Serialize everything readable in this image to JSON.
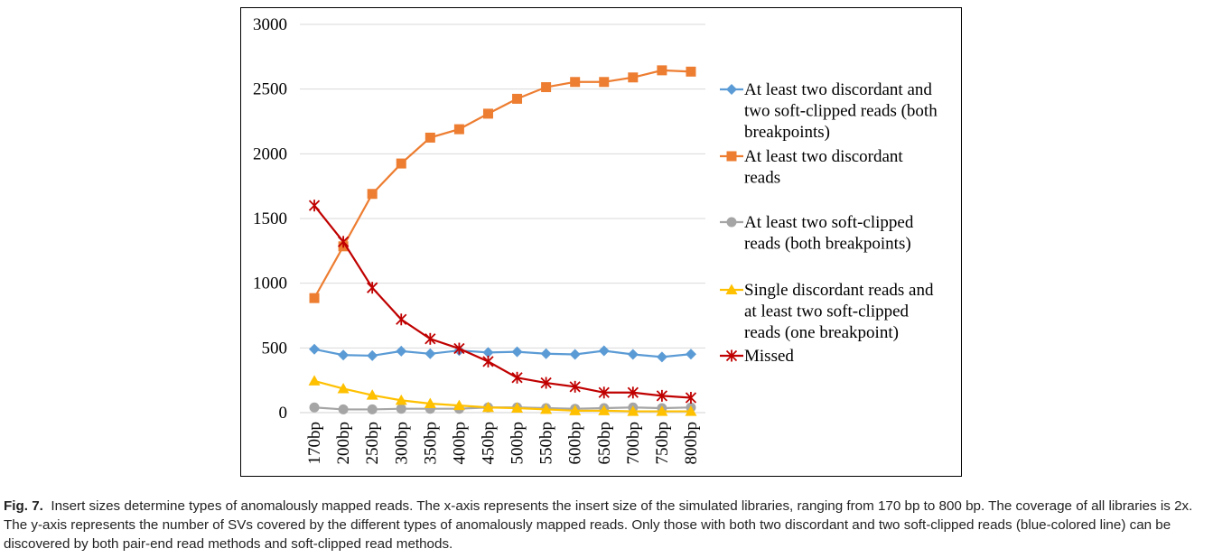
{
  "chart_data": {
    "type": "line",
    "categories": [
      "170bp",
      "200bp",
      "250bp",
      "300bp",
      "350bp",
      "400bp",
      "450bp",
      "500bp",
      "550bp",
      "600bp",
      "650bp",
      "700bp",
      "750bp",
      "800bp"
    ],
    "ylim": [
      0,
      3000
    ],
    "yticks": [
      0,
      500,
      1000,
      1500,
      2000,
      2500,
      3000
    ],
    "grid": true,
    "legend_position": "right",
    "series": [
      {
        "name": "At least two discordant and two soft-clipped reads (both breakpoints)",
        "legend_lines": [
          "At least two discordant and",
          "two soft-clipped reads (both",
          "breakpoints)"
        ],
        "color": "#5b9bd5",
        "marker": "diamond",
        "values": [
          490,
          445,
          440,
          475,
          455,
          480,
          465,
          470,
          455,
          450,
          478,
          450,
          430,
          452
        ]
      },
      {
        "name": "At least two discordant reads",
        "legend_lines": [
          "At least two discordant",
          "reads"
        ],
        "color": "#ed7d31",
        "marker": "square",
        "values": [
          885,
          1285,
          1690,
          1925,
          2125,
          2190,
          2310,
          2425,
          2515,
          2555,
          2555,
          2590,
          2645,
          2635
        ]
      },
      {
        "name": "At least two soft-clipped reads (both breakpoints)",
        "legend_lines": [
          "At least two soft-clipped",
          "reads (both breakpoints)"
        ],
        "color": "#a5a5a5",
        "marker": "circle",
        "values": [
          40,
          25,
          25,
          30,
          30,
          30,
          40,
          40,
          35,
          30,
          35,
          40,
          35,
          40
        ]
      },
      {
        "name": "Single discordant reads and at least two soft-clipped reads (one breakpoint)",
        "legend_lines": [
          "Single discordant reads and",
          "at least two soft-clipped",
          "reads (one breakpoint)"
        ],
        "color": "#ffc000",
        "marker": "triangle",
        "values": [
          245,
          185,
          135,
          95,
          70,
          55,
          40,
          35,
          25,
          15,
          15,
          10,
          10,
          10
        ]
      },
      {
        "name": "Missed",
        "legend_lines": [
          "Missed"
        ],
        "color": "#c00000",
        "marker": "star",
        "values": [
          1600,
          1320,
          965,
          720,
          570,
          495,
          395,
          270,
          230,
          200,
          155,
          155,
          130,
          115
        ]
      }
    ]
  },
  "caption": {
    "label": "Fig. 7.",
    "text": "Insert sizes determine types of anomalously mapped reads. The x-axis represents the insert size of the simulated libraries, ranging from 170 bp to 800 bp. The coverage of all libraries is 2x. The y-axis represents the number of SVs covered by the different types of anomalously mapped reads. Only those with both two discordant and two soft-clipped reads (blue-colored line) can be discovered by both pair-end read methods and soft-clipped read methods."
  }
}
